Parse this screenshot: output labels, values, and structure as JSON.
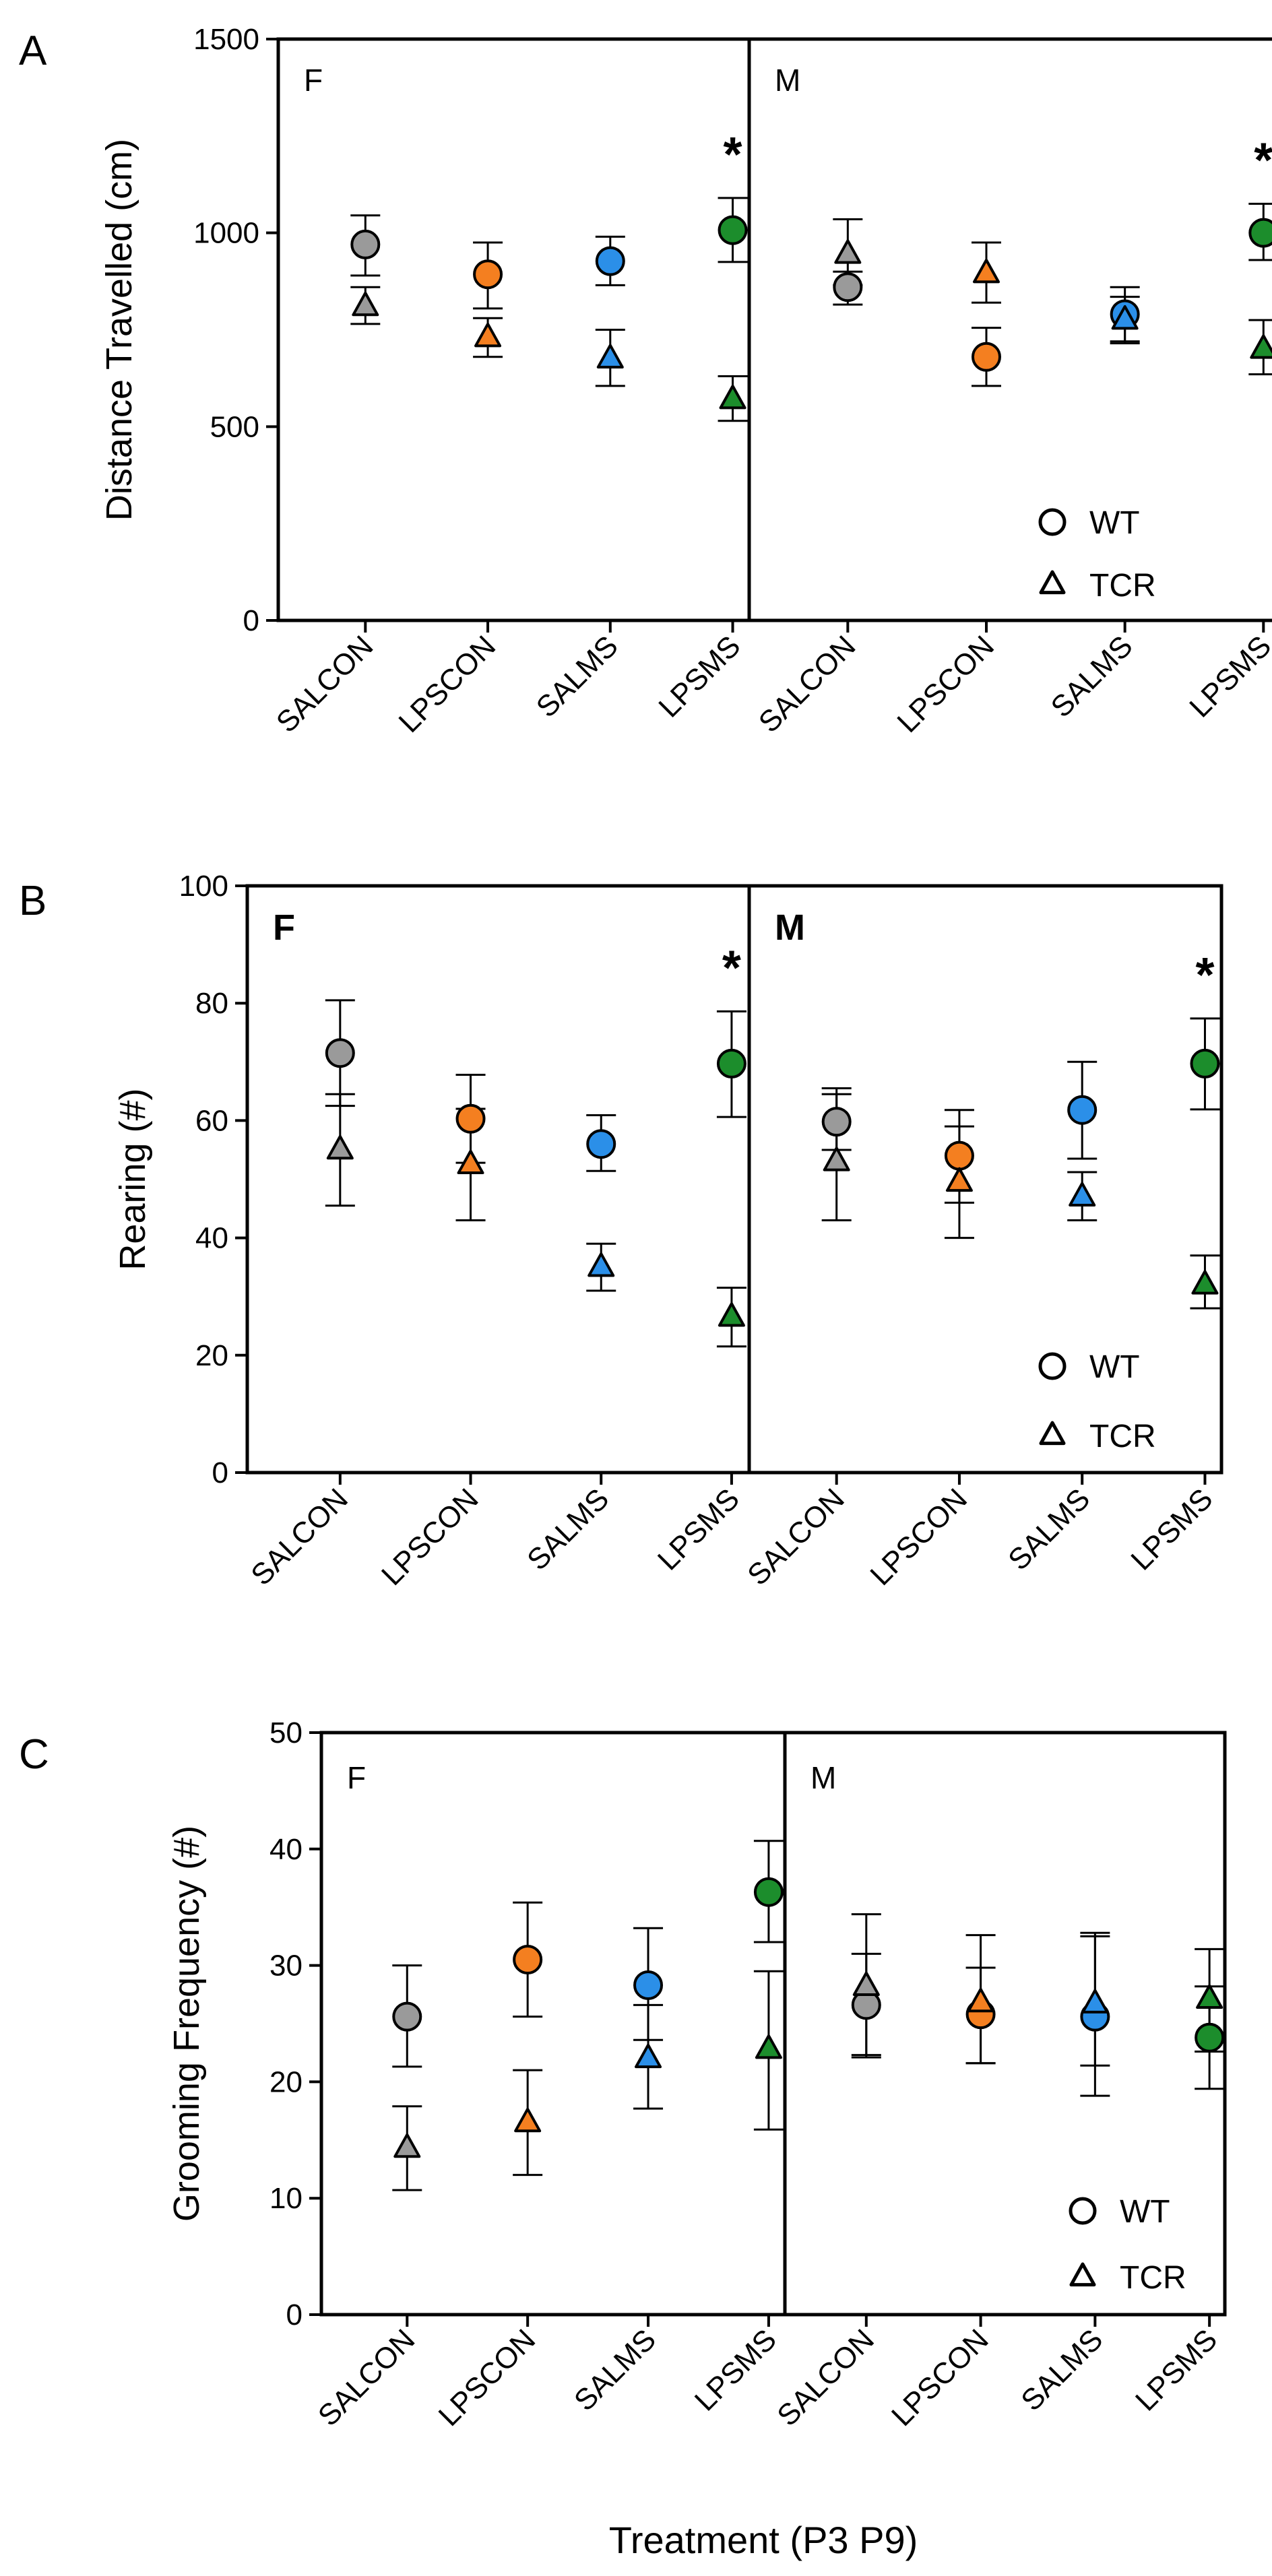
{
  "figure": {
    "xlabel": "Treatment (P3 P9)"
  },
  "colors": {
    "SALCON": "#9a9a9a",
    "LPSCON": "#f47f20",
    "SALMS": "#2b8fe8",
    "LPSMS": "#1c8d2c"
  },
  "legend": {
    "wt_label": "WT",
    "tcr_label": "TCR"
  },
  "chart_data": [
    {
      "type": "scatter",
      "panel": "A",
      "ylabel": "Distance Travelled (cm)",
      "ylim": [
        0,
        1500
      ],
      "yticks": [
        "0",
        "500",
        "1000",
        "1500"
      ],
      "categories": [
        "SALCON",
        "LPSCON",
        "SALMS",
        "LPSMS"
      ],
      "groups": [
        {
          "label": "F",
          "label_bold": false,
          "series": [
            {
              "name": "WT",
              "marker": "circle",
              "values": [
                970,
                893,
                927,
                1007
              ],
              "err_upper": [
                1045,
                975,
                990,
                1090
              ],
              "err_lower": [
                890,
                805,
                865,
                925
              ]
            },
            {
              "name": "TCR",
              "marker": "triangle",
              "values": [
                810,
                730,
                675,
                570
              ],
              "err_upper": [
                860,
                780,
                750,
                630
              ],
              "err_lower": [
                765,
                680,
                605,
                515
              ]
            }
          ],
          "significance": [
            "",
            "",
            "",
            "*"
          ]
        },
        {
          "label": "M",
          "label_bold": false,
          "series": [
            {
              "name": "WT",
              "marker": "circle",
              "values": [
                860,
                680,
                790,
                1000
              ],
              "err_upper": [
                900,
                755,
                860,
                1075
              ],
              "err_lower": [
                815,
                605,
                720,
                930
              ]
            },
            {
              "name": "TCR",
              "marker": "triangle",
              "values": [
                945,
                895,
                775,
                700
              ],
              "err_upper": [
                1035,
                975,
                835,
                775
              ],
              "err_lower": [
                865,
                820,
                715,
                635
              ]
            }
          ],
          "significance": [
            "",
            "",
            "",
            "*"
          ]
        }
      ]
    },
    {
      "type": "scatter",
      "panel": "B",
      "ylabel": "Rearing (#)",
      "ylim": [
        0,
        100
      ],
      "yticks": [
        "0",
        "20",
        "40",
        "60",
        "80",
        "100"
      ],
      "categories": [
        "SALCON",
        "LPSCON",
        "SALMS",
        "LPSMS"
      ],
      "groups": [
        {
          "label": "F",
          "label_bold": true,
          "series": [
            {
              "name": "WT",
              "marker": "circle",
              "values": [
                71.5,
                60.3,
                56.0,
                69.7
              ],
              "err_upper": [
                80.5,
                67.8,
                60.9,
                78.6
              ],
              "err_lower": [
                62.5,
                52.8,
                51.4,
                60.6
              ]
            },
            {
              "name": "TCR",
              "marker": "triangle",
              "values": [
                55.0,
                52.5,
                35.0,
                26.5
              ],
              "err_upper": [
                64.5,
                62.0,
                39.0,
                31.5
              ],
              "err_lower": [
                45.5,
                43.0,
                31.0,
                21.5
              ]
            }
          ],
          "significance": [
            "",
            "",
            "",
            "*"
          ]
        },
        {
          "label": "M",
          "label_bold": true,
          "series": [
            {
              "name": "WT",
              "marker": "circle",
              "values": [
                59.8,
                54.0,
                61.8,
                69.7
              ],
              "err_upper": [
                64.5,
                61.8,
                70.0,
                77.4
              ],
              "err_lower": [
                55.0,
                46.0,
                53.5,
                61.9
              ]
            },
            {
              "name": "TCR",
              "marker": "triangle",
              "values": [
                53.0,
                49.5,
                47.0,
                32.0
              ],
              "err_upper": [
                65.5,
                59.0,
                51.2,
                37.0
              ],
              "err_lower": [
                43.0,
                40.0,
                43.0,
                28.0
              ]
            }
          ],
          "significance": [
            "",
            "",
            "",
            "*"
          ]
        }
      ]
    },
    {
      "type": "scatter",
      "panel": "C",
      "ylabel": "Grooming Frequency (#)",
      "ylim": [
        0,
        50
      ],
      "yticks": [
        "0",
        "10",
        "20",
        "30",
        "40",
        "50"
      ],
      "categories": [
        "SALCON",
        "LPSCON",
        "SALMS",
        "LPSMS"
      ],
      "groups": [
        {
          "label": "F",
          "label_bold": false,
          "series": [
            {
              "name": "WT",
              "marker": "circle",
              "values": [
                25.6,
                30.5,
                28.3,
                36.3
              ],
              "err_upper": [
                30.0,
                35.4,
                33.2,
                40.7
              ],
              "err_lower": [
                21.3,
                25.6,
                23.6,
                32.0
              ]
            },
            {
              "name": "TCR",
              "marker": "triangle",
              "values": [
                14.3,
                16.5,
                22.0,
                22.8
              ],
              "err_upper": [
                17.9,
                21.0,
                26.6,
                29.5
              ],
              "err_lower": [
                10.7,
                12.0,
                17.7,
                15.9
              ]
            }
          ],
          "significance": [
            "",
            "",
            "",
            ""
          ]
        },
        {
          "label": "M",
          "label_bold": false,
          "series": [
            {
              "name": "WT",
              "marker": "circle",
              "values": [
                26.6,
                25.8,
                25.6,
                23.8
              ],
              "err_upper": [
                31.0,
                29.8,
                32.5,
                28.2
              ],
              "err_lower": [
                22.1,
                21.6,
                18.8,
                19.4
              ]
            },
            {
              "name": "TCR",
              "marker": "triangle",
              "values": [
                28.2,
                26.8,
                26.7,
                27.1
              ],
              "err_upper": [
                34.4,
                32.6,
                32.8,
                31.4
              ],
              "err_lower": [
                22.3,
                21.6,
                21.4,
                22.6
              ]
            }
          ],
          "significance": [
            "",
            "",
            "",
            ""
          ]
        }
      ]
    }
  ]
}
